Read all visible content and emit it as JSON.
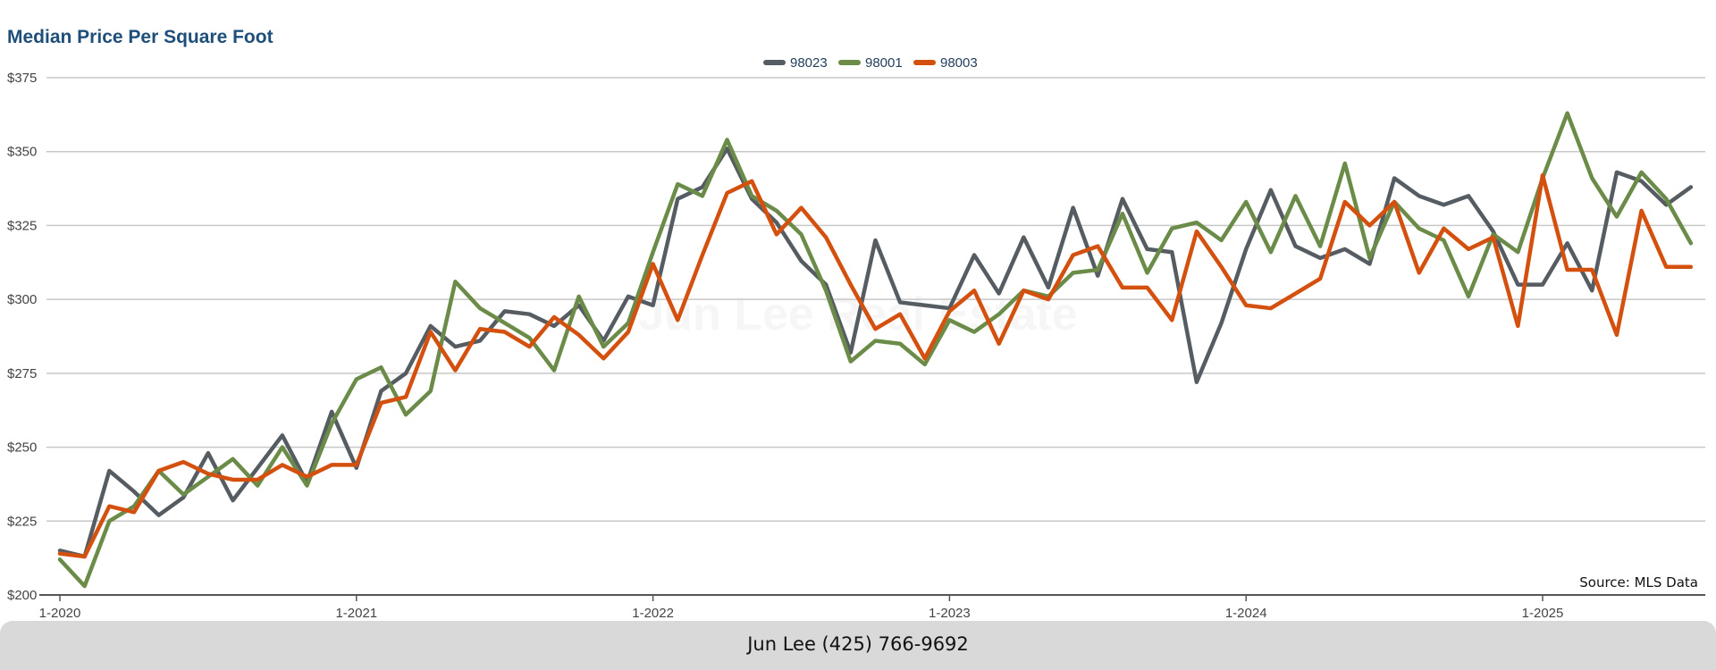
{
  "chart_data": {
    "type": "line",
    "title": "Median Price Per Square Foot",
    "xlabel": "",
    "ylabel": "",
    "x_tick_labels": [
      "1-2020",
      "1-2021",
      "1-2022",
      "1-2023",
      "1-2024",
      "1-2025"
    ],
    "y_tick_labels": [
      "$200",
      "$225",
      "$250",
      "$275",
      "$300",
      "$325",
      "$350",
      "$375"
    ],
    "y_ticks": [
      200,
      225,
      250,
      275,
      300,
      325,
      350,
      375
    ],
    "ylim": [
      200,
      375
    ],
    "x_start": "2020-01",
    "grid": true,
    "legend_position": "top-center",
    "x": [
      "2020-01",
      "2020-02",
      "2020-03",
      "2020-04",
      "2020-05",
      "2020-06",
      "2020-07",
      "2020-08",
      "2020-09",
      "2020-10",
      "2020-11",
      "2020-12",
      "2021-01",
      "2021-02",
      "2021-03",
      "2021-04",
      "2021-05",
      "2021-06",
      "2021-07",
      "2021-08",
      "2021-09",
      "2021-10",
      "2021-11",
      "2021-12",
      "2022-01",
      "2022-02",
      "2022-03",
      "2022-04",
      "2022-05",
      "2022-06",
      "2022-07",
      "2022-08",
      "2022-09",
      "2022-10",
      "2022-11",
      "2022-12",
      "2023-01",
      "2023-02",
      "2023-03",
      "2023-04",
      "2023-05",
      "2023-06",
      "2023-07",
      "2023-08",
      "2023-09",
      "2023-10",
      "2023-11",
      "2023-12",
      "2024-01",
      "2024-02",
      "2024-03",
      "2024-04",
      "2024-05",
      "2024-06",
      "2024-07",
      "2024-08",
      "2024-09",
      "2024-10",
      "2024-11",
      "2024-12",
      "2025-01",
      "2025-02",
      "2025-03",
      "2025-04",
      "2025-05",
      "2025-06",
      "2025-07"
    ],
    "series": [
      {
        "name": "98023",
        "color": "#565d62",
        "values": [
          215,
          213,
          242,
          235,
          227,
          233,
          248,
          232,
          243,
          254,
          238,
          262,
          243,
          269,
          275,
          291,
          284,
          286,
          296,
          295,
          291,
          298,
          286,
          301,
          298,
          334,
          338,
          351,
          334,
          326,
          313,
          305,
          282,
          320,
          299,
          298,
          297,
          315,
          302,
          321,
          304,
          331,
          308,
          334,
          317,
          316,
          272,
          292,
          317,
          337,
          318,
          314,
          317,
          312,
          341,
          335,
          332,
          335,
          323,
          305,
          305,
          319,
          303,
          343,
          340,
          332,
          338
        ]
      },
      {
        "name": "98001",
        "color": "#6b8c48",
        "values": [
          212,
          203,
          225,
          230,
          242,
          234,
          240,
          246,
          237,
          250,
          237,
          258,
          273,
          277,
          261,
          269,
          306,
          297,
          292,
          287,
          276,
          301,
          284,
          292,
          316,
          339,
          335,
          354,
          335,
          330,
          322,
          303,
          279,
          286,
          285,
          278,
          293,
          289,
          295,
          303,
          301,
          309,
          310,
          329,
          309,
          324,
          326,
          320,
          333,
          316,
          335,
          318,
          346,
          314,
          333,
          324,
          320,
          301,
          322,
          316,
          341,
          363,
          341,
          328,
          343,
          334,
          319
        ]
      },
      {
        "name": "98003",
        "color": "#d4500f",
        "values": [
          214,
          213,
          230,
          228,
          242,
          245,
          241,
          239,
          239,
          244,
          240,
          244,
          244,
          265,
          267,
          289,
          276,
          290,
          289,
          284,
          294,
          288,
          280,
          289,
          312,
          293,
          315,
          336,
          340,
          322,
          331,
          321,
          305,
          290,
          295,
          280,
          296,
          303,
          285,
          303,
          300,
          315,
          318,
          304,
          304,
          293,
          323,
          311,
          298,
          297,
          302,
          307,
          333,
          325,
          333,
          309,
          324,
          317,
          321,
          291,
          342,
          310,
          310,
          288,
          330,
          311,
          311
        ]
      }
    ]
  },
  "source_note": "Source: MLS Data",
  "watermark": "Jun Lee Real Estate",
  "footer": {
    "contact": "Jun Lee (425) 766-9692"
  }
}
